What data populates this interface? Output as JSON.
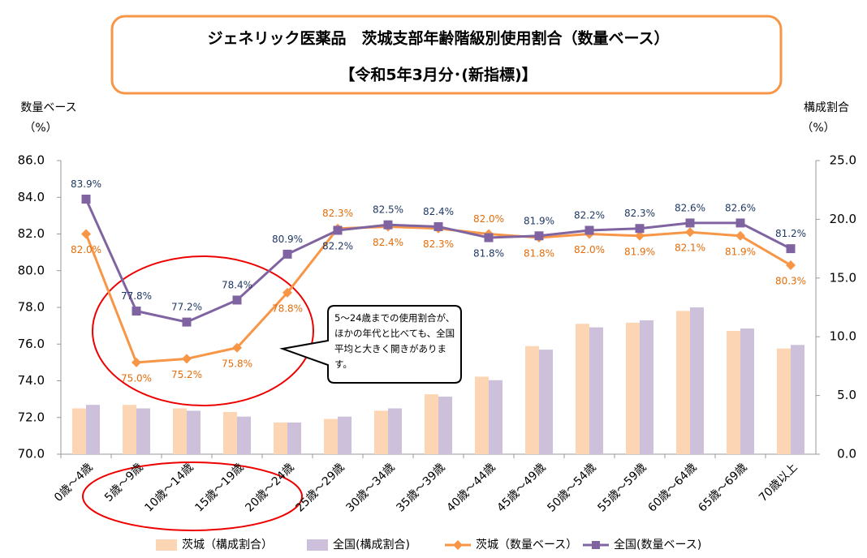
{
  "chart_data": {
    "type": "bar",
    "title": "ジェネリック医薬品　茨城支部年齢階級別使用割合（数量ベース）",
    "subtitle": "【令和5年3月分･(新指標)】",
    "ylabel": "数量ベース",
    "ylabel_unit": "（%）",
    "y2label": "構成割合",
    "y2label_unit": "（%）",
    "categories": [
      "0歳～4歳",
      "5歳～9歳",
      "10歳～14歳",
      "15歳～19歳",
      "20歳～24歳",
      "25歳～29歳",
      "30歳～34歳",
      "35歳～39歳",
      "40歳～44歳",
      "45歳～49歳",
      "50歳～54歳",
      "55歳～59歳",
      "60歳～64歳",
      "65歳～69歳",
      "70歳以上"
    ],
    "ylim": [
      70,
      86
    ],
    "yticks": [
      {
        "value": 70,
        "label": "70.0"
      },
      {
        "value": 72,
        "label": "72.0"
      },
      {
        "value": 74,
        "label": "74.0"
      },
      {
        "value": 76,
        "label": "76.0"
      },
      {
        "value": 78,
        "label": "78.0"
      },
      {
        "value": 80,
        "label": "80.0"
      },
      {
        "value": 82,
        "label": "82.0"
      },
      {
        "value": 84,
        "label": "84.0"
      },
      {
        "value": 86,
        "label": "86.0"
      }
    ],
    "y2lim": [
      0,
      25
    ],
    "y2ticks": [
      {
        "value": 0,
        "label": "0.0"
      },
      {
        "value": 5,
        "label": "5.0"
      },
      {
        "value": 10,
        "label": "10.0"
      },
      {
        "value": 15,
        "label": "15.0"
      },
      {
        "value": 20,
        "label": "20.0"
      },
      {
        "value": 25,
        "label": "25.0"
      }
    ],
    "grid": false,
    "legend": "bottom",
    "series": [
      {
        "name": "茨城（構成割合）",
        "type": "bar",
        "axis": "y2",
        "color": "#fcd5b5",
        "values": [
          3.9,
          4.2,
          3.9,
          3.6,
          2.7,
          3.0,
          3.7,
          5.1,
          6.6,
          9.2,
          11.1,
          11.2,
          12.2,
          10.5,
          9.0
        ]
      },
      {
        "name": "全国(構成割合)",
        "type": "bar",
        "axis": "y2",
        "color": "#ccc0da",
        "values": [
          4.2,
          3.9,
          3.7,
          3.2,
          2.7,
          3.2,
          3.9,
          4.9,
          6.3,
          8.9,
          10.8,
          11.4,
          12.5,
          10.7,
          9.3
        ]
      },
      {
        "name": "茨城（数量ベース）",
        "type": "line",
        "color": "#f79646",
        "marker": "diamond",
        "values": [
          82.0,
          75.0,
          75.2,
          75.8,
          78.8,
          82.3,
          82.4,
          82.3,
          82.0,
          81.8,
          82.0,
          81.9,
          82.1,
          81.9,
          80.3
        ],
        "value_labels": [
          "82.0%",
          "75.0%",
          "75.2%",
          "75.8%",
          "78.8%",
          "82.3%",
          "82.4%",
          "82.3%",
          "82.0%",
          "81.8%",
          "82.0%",
          "81.9%",
          "82.1%",
          "81.9%",
          "80.3%"
        ]
      },
      {
        "name": "全国(数量ベース)",
        "type": "line",
        "color": "#8064a2",
        "marker": "square",
        "values": [
          83.9,
          77.8,
          77.2,
          78.4,
          80.9,
          82.2,
          82.5,
          82.4,
          81.8,
          81.9,
          82.2,
          82.3,
          82.6,
          82.6,
          81.2
        ],
        "value_labels": [
          "83.9%",
          "77.8%",
          "77.2%",
          "78.4%",
          "80.9%",
          "82.2%",
          "82.5%",
          "82.4%",
          "81.8%",
          "81.9%",
          "82.2%",
          "82.3%",
          "82.6%",
          "82.6%",
          "81.2%"
        ]
      }
    ],
    "annotation": "5～24歳までの使用割合が、ほかの年代と比べても、全国平均と大きく開きがあります。"
  }
}
